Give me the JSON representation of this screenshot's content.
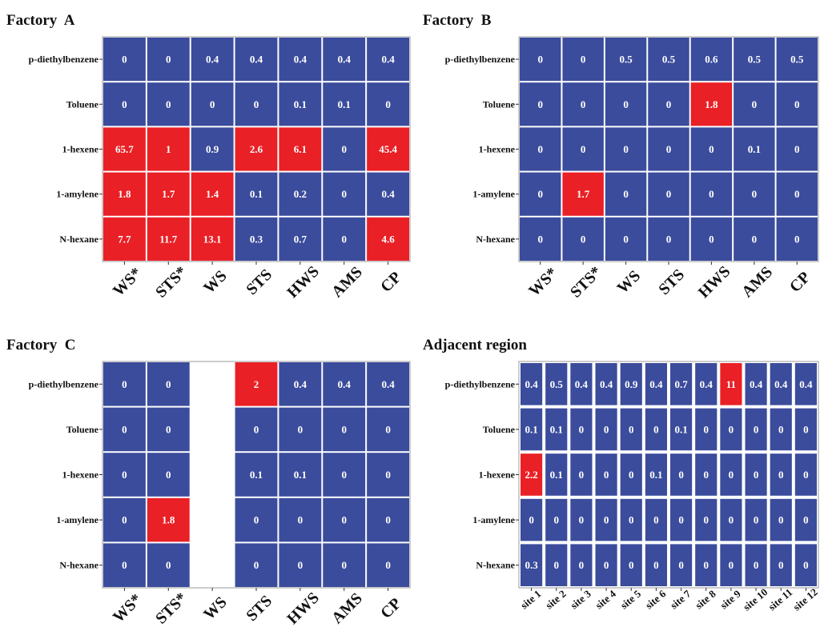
{
  "colors": {
    "low": "#3b4c9c",
    "high": "#e92026",
    "grid": "#ffffff",
    "frame": "#9a9a9a"
  },
  "chart_data": [
    {
      "type": "heatmap",
      "title": "Factory  A",
      "rows": [
        "p-diethylbenzene",
        "Toluene",
        "1-hexene",
        "1-amylene",
        "N-hexane"
      ],
      "columns": [
        "WS*",
        "STS*",
        "WS",
        "STS",
        "HWS",
        "AMS",
        "CP"
      ],
      "values": [
        [
          "0",
          "0",
          "0.4",
          "0.4",
          "0.4",
          "0.4",
          "0.4"
        ],
        [
          "0",
          "0",
          "0",
          "0",
          "0.1",
          "0.1",
          "0"
        ],
        [
          "65.7",
          "1",
          "0.9",
          "2.6",
          "6.1",
          "0",
          "45.4"
        ],
        [
          "1.8",
          "1.7",
          "1.4",
          "0.1",
          "0.2",
          "0",
          "0.4"
        ],
        [
          "7.7",
          "11.7",
          "13.1",
          "0.3",
          "0.7",
          "0",
          "4.6"
        ]
      ],
      "highlighted": [
        [
          0,
          0,
          0,
          0,
          0,
          0,
          0
        ],
        [
          0,
          0,
          0,
          0,
          0,
          0,
          0
        ],
        [
          1,
          1,
          0,
          1,
          1,
          0,
          1
        ],
        [
          1,
          1,
          1,
          0,
          0,
          0,
          0
        ],
        [
          1,
          1,
          1,
          0,
          0,
          0,
          1
        ]
      ]
    },
    {
      "type": "heatmap",
      "title": "Factory  B",
      "rows": [
        "p-diethylbenzene",
        "Toluene",
        "1-hexene",
        "1-amylene",
        "N-hexane"
      ],
      "columns": [
        "WS*",
        "STS*",
        "WS",
        "STS",
        "HWS",
        "AMS",
        "CP"
      ],
      "values": [
        [
          "0",
          "0",
          "0.5",
          "0.5",
          "0.6",
          "0.5",
          "0.5"
        ],
        [
          "0",
          "0",
          "0",
          "0",
          "1.8",
          "0",
          "0"
        ],
        [
          "0",
          "0",
          "0",
          "0",
          "0",
          "0.1",
          "0"
        ],
        [
          "0",
          "1.7",
          "0",
          "0",
          "0",
          "0",
          "0"
        ],
        [
          "0",
          "0",
          "0",
          "0",
          "0",
          "0",
          "0"
        ]
      ],
      "highlighted": [
        [
          0,
          0,
          0,
          0,
          0,
          0,
          0
        ],
        [
          0,
          0,
          0,
          0,
          1,
          0,
          0
        ],
        [
          0,
          0,
          0,
          0,
          0,
          0,
          0
        ],
        [
          0,
          1,
          0,
          0,
          0,
          0,
          0
        ],
        [
          0,
          0,
          0,
          0,
          0,
          0,
          0
        ]
      ]
    },
    {
      "type": "heatmap",
      "title": "Factory  C",
      "rows": [
        "p-diethylbenzene",
        "Toluene",
        "1-hexene",
        "1-amylene",
        "N-hexane"
      ],
      "columns": [
        "WS*",
        "STS*",
        "WS",
        "STS",
        "HWS",
        "AMS",
        "CP"
      ],
      "values": [
        [
          "0",
          "0",
          null,
          "2",
          "0.4",
          "0.4",
          "0.4"
        ],
        [
          "0",
          "0",
          null,
          "0",
          "0",
          "0",
          "0"
        ],
        [
          "0",
          "0",
          null,
          "0.1",
          "0.1",
          "0",
          "0"
        ],
        [
          "0",
          "1.8",
          null,
          "0",
          "0",
          "0",
          "0"
        ],
        [
          "0",
          "0",
          null,
          "0",
          "0",
          "0",
          "0"
        ]
      ],
      "highlighted": [
        [
          0,
          0,
          0,
          1,
          0,
          0,
          0
        ],
        [
          0,
          0,
          0,
          0,
          0,
          0,
          0
        ],
        [
          0,
          0,
          0,
          0,
          0,
          0,
          0
        ],
        [
          0,
          1,
          0,
          0,
          0,
          0,
          0
        ],
        [
          0,
          0,
          0,
          0,
          0,
          0,
          0
        ]
      ]
    },
    {
      "type": "heatmap",
      "title": "Adjacent region",
      "rows": [
        "p-diethylbenzene",
        "Toluene",
        "1-hexene",
        "1-amylene",
        "N-hexane"
      ],
      "columns": [
        "site 1",
        "site 2",
        "site 3",
        "site 4",
        "site 5",
        "site 6",
        "site 7",
        "site 8",
        "site 9",
        "site 10",
        "site 11",
        "site 12"
      ],
      "values": [
        [
          "0.4",
          "0.5",
          "0.4",
          "0.4",
          "0.9",
          "0.4",
          "0.7",
          "0.4",
          "11",
          "0.4",
          "0.4",
          "0.4"
        ],
        [
          "0.1",
          "0.1",
          "0",
          "0",
          "0",
          "0",
          "0.1",
          "0",
          "0",
          "0",
          "0",
          "0"
        ],
        [
          "2.2",
          "0.1",
          "0",
          "0",
          "0",
          "0.1",
          "0",
          "0",
          "0",
          "0",
          "0",
          "0"
        ],
        [
          "0",
          "0",
          "0",
          "0",
          "0",
          "0",
          "0",
          "0",
          "0",
          "0",
          "0",
          "0"
        ],
        [
          "0.3",
          "0",
          "0",
          "0",
          "0",
          "0",
          "0",
          "0",
          "0",
          "0",
          "0",
          "0"
        ]
      ],
      "highlighted": [
        [
          0,
          0,
          0,
          0,
          0,
          0,
          0,
          0,
          1,
          0,
          0,
          0
        ],
        [
          0,
          0,
          0,
          0,
          0,
          0,
          0,
          0,
          0,
          0,
          0,
          0
        ],
        [
          1,
          0,
          0,
          0,
          0,
          0,
          0,
          0,
          0,
          0,
          0,
          0
        ],
        [
          0,
          0,
          0,
          0,
          0,
          0,
          0,
          0,
          0,
          0,
          0,
          0
        ],
        [
          0,
          0,
          0,
          0,
          0,
          0,
          0,
          0,
          0,
          0,
          0,
          0
        ]
      ]
    }
  ]
}
